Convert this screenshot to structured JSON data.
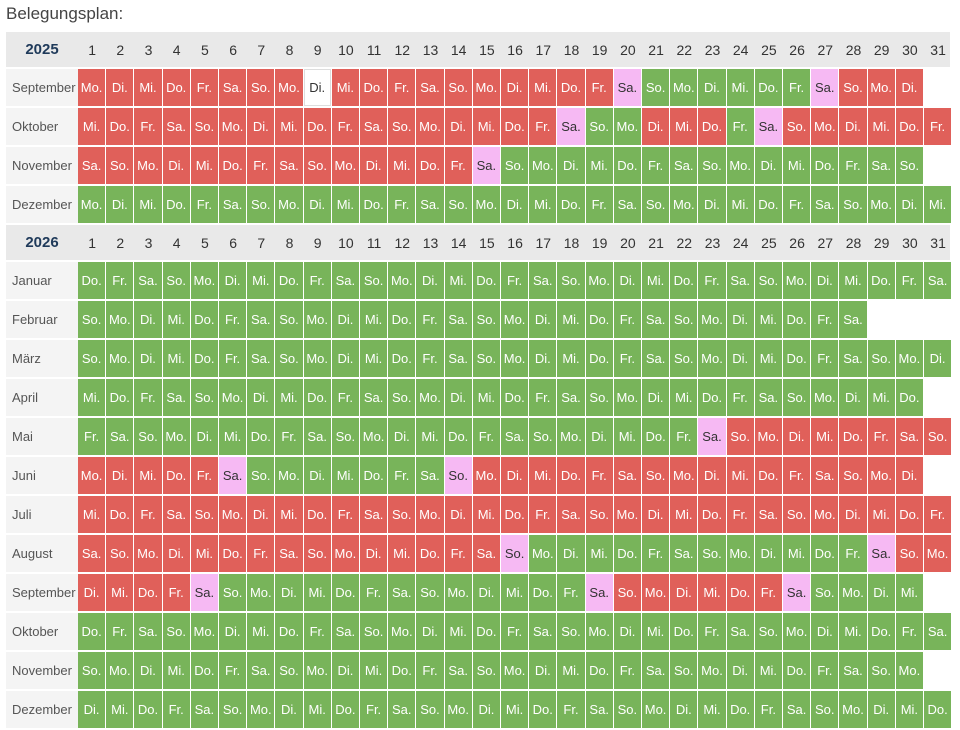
{
  "title": "Belegungsplan:",
  "day_numbers": [
    "1",
    "2",
    "3",
    "4",
    "5",
    "6",
    "7",
    "8",
    "9",
    "10",
    "11",
    "12",
    "13",
    "14",
    "15",
    "16",
    "17",
    "18",
    "19",
    "20",
    "21",
    "22",
    "23",
    "24",
    "25",
    "26",
    "27",
    "28",
    "29",
    "30",
    "31"
  ],
  "years": [
    {
      "label": "2025",
      "months": [
        {
          "name": "September",
          "start": 0,
          "days": 30,
          "red": [
            [
              1,
              19
            ],
            [
              28,
              30
            ]
          ],
          "pink": [
            20,
            27
          ],
          "white": [
            9
          ]
        },
        {
          "name": "Oktober",
          "start": 2,
          "days": 31,
          "red": [
            [
              1,
              17
            ],
            [
              21,
              23
            ],
            [
              26,
              31
            ]
          ],
          "pink": [
            18,
            25
          ],
          "white": []
        },
        {
          "name": "November",
          "start": 5,
          "days": 30,
          "red": [
            [
              1,
              14
            ]
          ],
          "pink": [
            15
          ],
          "white": []
        },
        {
          "name": "Dezember",
          "start": 0,
          "days": 31,
          "red": [],
          "pink": [],
          "white": []
        }
      ]
    },
    {
      "label": "2026",
      "months": [
        {
          "name": "Januar",
          "start": 3,
          "days": 31,
          "red": [],
          "pink": [],
          "white": []
        },
        {
          "name": "Februar",
          "start": 6,
          "days": 28,
          "red": [],
          "pink": [],
          "white": []
        },
        {
          "name": "März",
          "start": 6,
          "days": 31,
          "red": [],
          "pink": [],
          "white": []
        },
        {
          "name": "April",
          "start": 2,
          "days": 30,
          "red": [],
          "pink": [],
          "white": []
        },
        {
          "name": "Mai",
          "start": 4,
          "days": 31,
          "red": [
            [
              24,
              31
            ]
          ],
          "pink": [
            23
          ],
          "white": []
        },
        {
          "name": "Juni",
          "start": 0,
          "days": 30,
          "red": [
            [
              1,
              5
            ],
            [
              15,
              30
            ]
          ],
          "pink": [
            6,
            14
          ],
          "white": []
        },
        {
          "name": "Juli",
          "start": 2,
          "days": 31,
          "red": [
            [
              1,
              31
            ]
          ],
          "pink": [],
          "white": []
        },
        {
          "name": "August",
          "start": 5,
          "days": 31,
          "red": [
            [
              1,
              15
            ],
            [
              30,
              31
            ]
          ],
          "pink": [
            16,
            29
          ],
          "white": []
        },
        {
          "name": "September",
          "start": 1,
          "days": 30,
          "red": [
            [
              1,
              4
            ],
            [
              19,
              25
            ]
          ],
          "pink": [
            5,
            19,
            26
          ],
          "white": []
        },
        {
          "name": "Oktober",
          "start": 3,
          "days": 31,
          "red": [],
          "pink": [],
          "white": []
        },
        {
          "name": "November",
          "start": 6,
          "days": 30,
          "red": [],
          "pink": [],
          "white": []
        },
        {
          "name": "Dezember",
          "start": 1,
          "days": 31,
          "red": [],
          "pink": [],
          "white": []
        }
      ]
    }
  ],
  "weekday_abbr": [
    "Mo.",
    "Di.",
    "Mi.",
    "Do.",
    "Fr.",
    "Sa.",
    "So."
  ],
  "colors": {
    "booked": "#e0605a",
    "free": "#78b45a",
    "change": "#f6b9f3",
    "unavailable": "#ffffff"
  }
}
